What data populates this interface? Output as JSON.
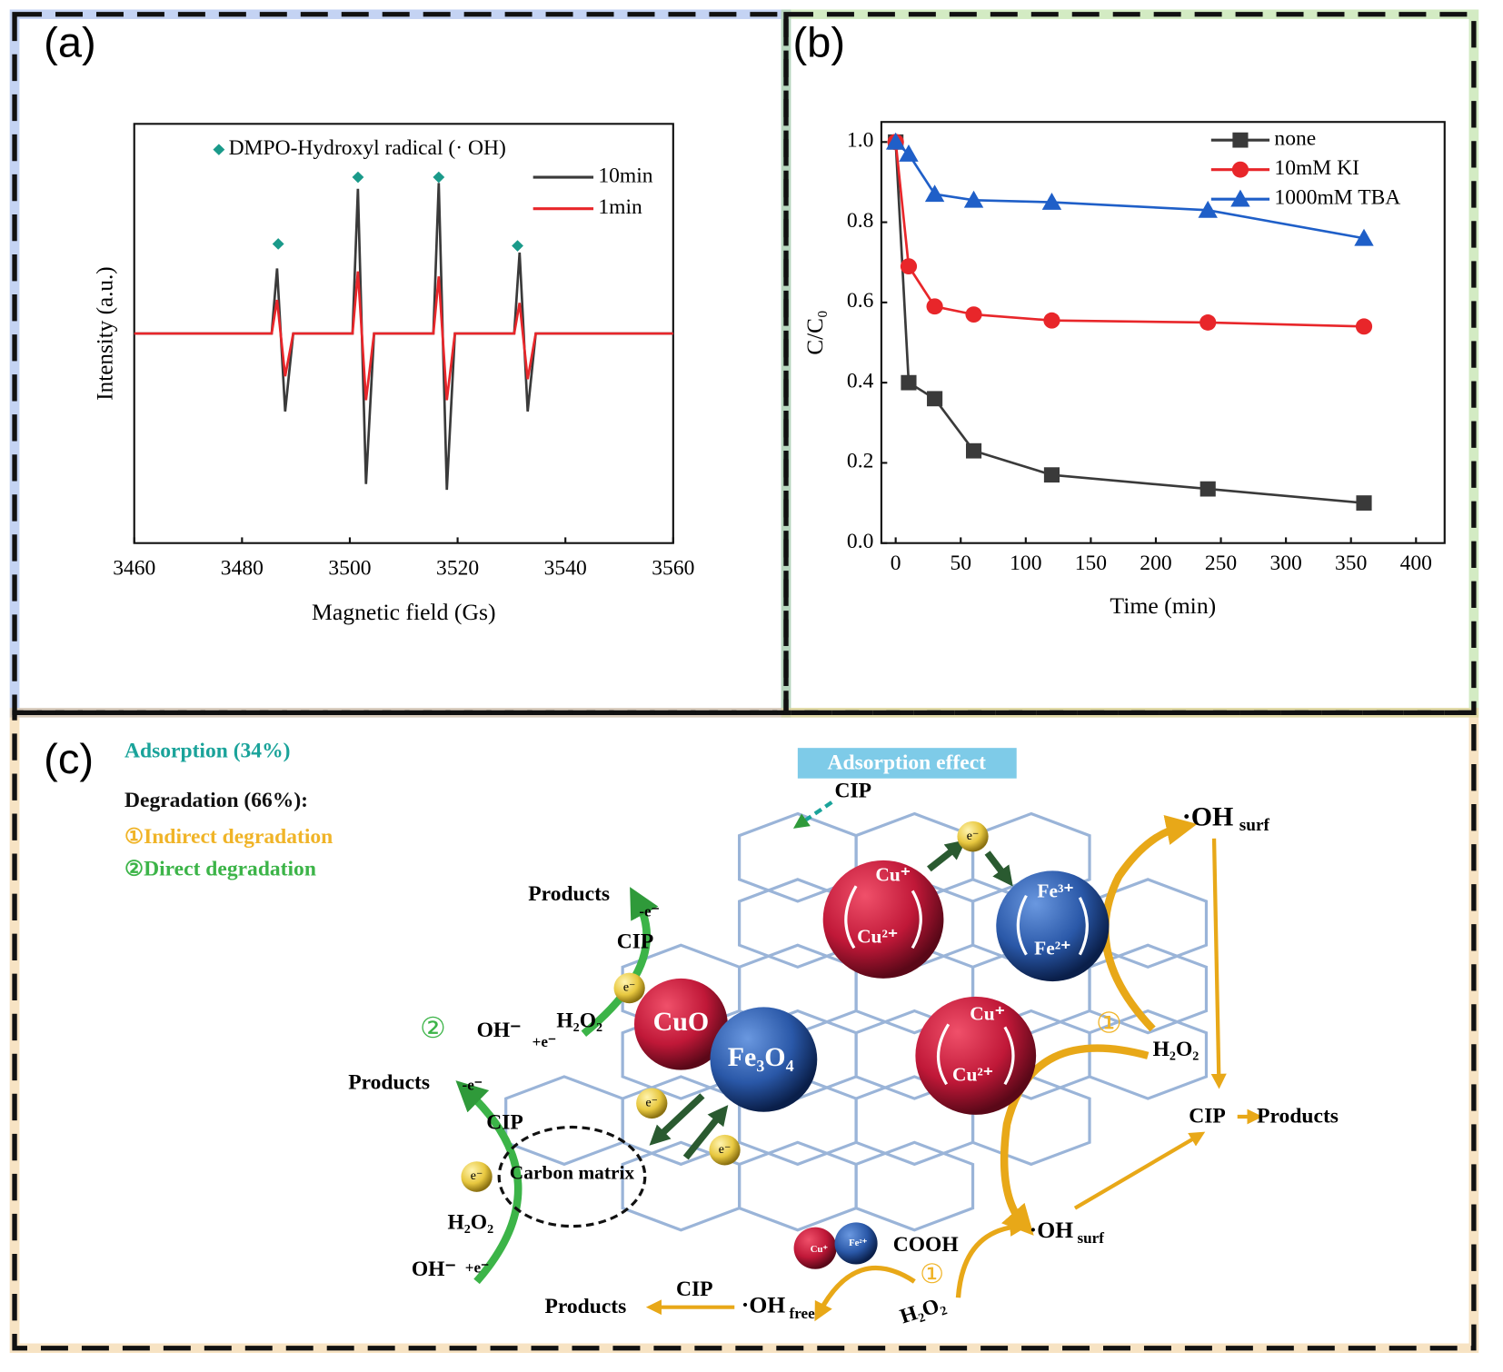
{
  "panels": {
    "a": "(a)",
    "b": "(b)",
    "c": "(c)"
  },
  "chart_data": [
    {
      "type": "line",
      "annotation": "DMPO-Hydroxyl radical (· OH)",
      "xlabel": "Magnetic field (Gs)",
      "ylabel": "Intensity (a.u.)",
      "x": [
        3460,
        3485.5,
        3486.5,
        3488,
        3489.5,
        3500.5,
        3501.5,
        3503,
        3504.5,
        3515.5,
        3516.5,
        3518,
        3519.5,
        3530.5,
        3531.5,
        3533,
        3534.5,
        3560
      ],
      "xlim": [
        3460,
        3560
      ],
      "xticks": [
        3460,
        3480,
        3500,
        3520,
        3540,
        3560
      ],
      "ylim": [
        0,
        100
      ],
      "series": [
        {
          "name": "10min",
          "color": "#3a3a3a",
          "values": [
            50,
            50,
            65.5,
            31.4,
            50,
            50,
            84.5,
            14.1,
            50,
            50,
            85.9,
            12.7,
            50,
            50,
            69.3,
            31.4,
            50,
            50
          ]
        },
        {
          "name": "1min",
          "color": "#e8262a",
          "values": [
            50,
            50,
            58,
            39.8,
            50,
            50,
            64.8,
            34.1,
            50,
            50,
            63.6,
            34.1,
            50,
            50,
            57.3,
            39.1,
            50,
            50
          ]
        }
      ]
    },
    {
      "type": "line",
      "xlabel": "Time (min)",
      "ylabel": "C/C₀",
      "x": [
        0,
        10,
        30,
        60,
        120,
        240,
        360
      ],
      "xlim": [
        -11,
        422
      ],
      "xticks": [
        0,
        50,
        100,
        150,
        200,
        250,
        300,
        350,
        400
      ],
      "ylim": [
        0,
        1.05
      ],
      "yticks": [
        {
          "value": 0,
          "label": "0.0"
        },
        0.2,
        0.4,
        0.6,
        0.8,
        {
          "value": 1,
          "label": "1.0"
        }
      ],
      "series": [
        {
          "name": "none",
          "color": "#3a3a3a",
          "marker": "square",
          "values": [
            1.0,
            0.4,
            0.36,
            0.23,
            0.17,
            0.135,
            0.1
          ]
        },
        {
          "name": "10mM KI",
          "color": "#e8262a",
          "marker": "circle",
          "values": [
            1.0,
            0.69,
            0.59,
            0.57,
            0.555,
            0.55,
            0.54
          ]
        },
        {
          "name": "1000mM TBA",
          "color": "#1f5fc8",
          "marker": "triangle",
          "values": [
            1.0,
            0.97,
            0.87,
            0.855,
            0.85,
            0.83,
            0.76
          ]
        }
      ]
    }
  ],
  "diagram": {
    "adsorption": "Adsorption (34%)",
    "degradation": "Degradation (66%):",
    "indirect": "①Indirect degradation",
    "direct": "②Direct degradation",
    "adsorption_effect": "Adsorption effect",
    "cip": "CIP",
    "products": "Products",
    "electron": "e⁻",
    "oh_main": "·OH",
    "surf": "surf",
    "free": "free",
    "h2o2": "H₂O₂",
    "cuo": "CuO",
    "fe3o4": "Fe₃O₄",
    "cu_plus": "Cu⁺",
    "cu2_plus": "Cu²⁺",
    "fe3_plus": "Fe³⁺",
    "fe2_plus": "Fe²⁺",
    "circle_two": "②",
    "circle_one": "①",
    "oh_minus": "OH⁻",
    "plus_e": "+e⁻",
    "minus_e": "-e⁻",
    "carbon_matrix": "Carbon matrix",
    "cooh": "COOH"
  }
}
